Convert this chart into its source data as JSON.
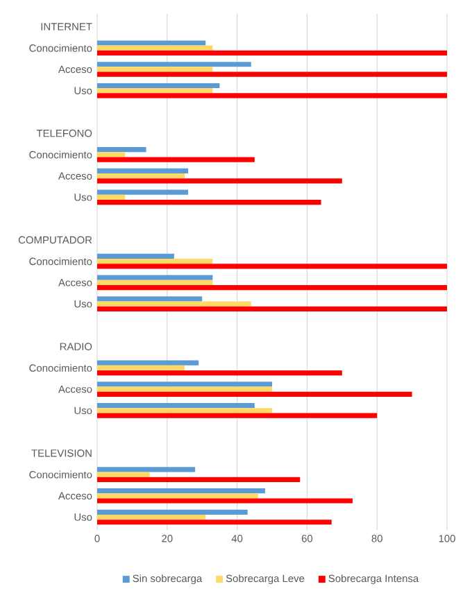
{
  "chart_data": {
    "type": "bar",
    "orientation": "horizontal",
    "categories": [
      "INTERNET",
      "Conocimiento",
      "Acceso",
      "Uso",
      null,
      "TELEFONO",
      "Conocimiento",
      "Acceso",
      "Uso",
      null,
      "COMPUTADOR",
      "Conocimiento",
      "Acceso",
      "Uso",
      null,
      "RADIO",
      "Conocimiento",
      "Acceso",
      "Uso",
      null,
      "TELEVISION",
      "Conocimiento",
      "Acceso",
      "Uso"
    ],
    "series": [
      {
        "name": "Sin sobrecarga",
        "color": "#5b9bd5",
        "values": [
          null,
          31,
          44,
          35,
          null,
          null,
          14,
          26,
          26,
          null,
          null,
          22,
          33,
          30,
          null,
          null,
          29,
          50,
          45,
          null,
          null,
          28,
          48,
          43
        ]
      },
      {
        "name": "Sobrecarga Leve",
        "color": "#ffd966",
        "values": [
          null,
          33,
          33,
          33,
          null,
          null,
          8,
          25,
          8,
          null,
          null,
          33,
          33,
          44,
          null,
          null,
          25,
          50,
          50,
          null,
          null,
          15,
          46,
          31
        ]
      },
      {
        "name": "Sobrecarga Intensa",
        "color": "#ff0000",
        "values": [
          null,
          100,
          100,
          100,
          null,
          null,
          45,
          70,
          64,
          null,
          null,
          100,
          100,
          100,
          null,
          null,
          70,
          90,
          80,
          null,
          null,
          58,
          73,
          67
        ]
      }
    ],
    "xlim": [
      0,
      100
    ],
    "xticks": [
      0,
      20,
      40,
      60,
      80,
      100
    ],
    "grid": "x",
    "legend": "bottom"
  }
}
